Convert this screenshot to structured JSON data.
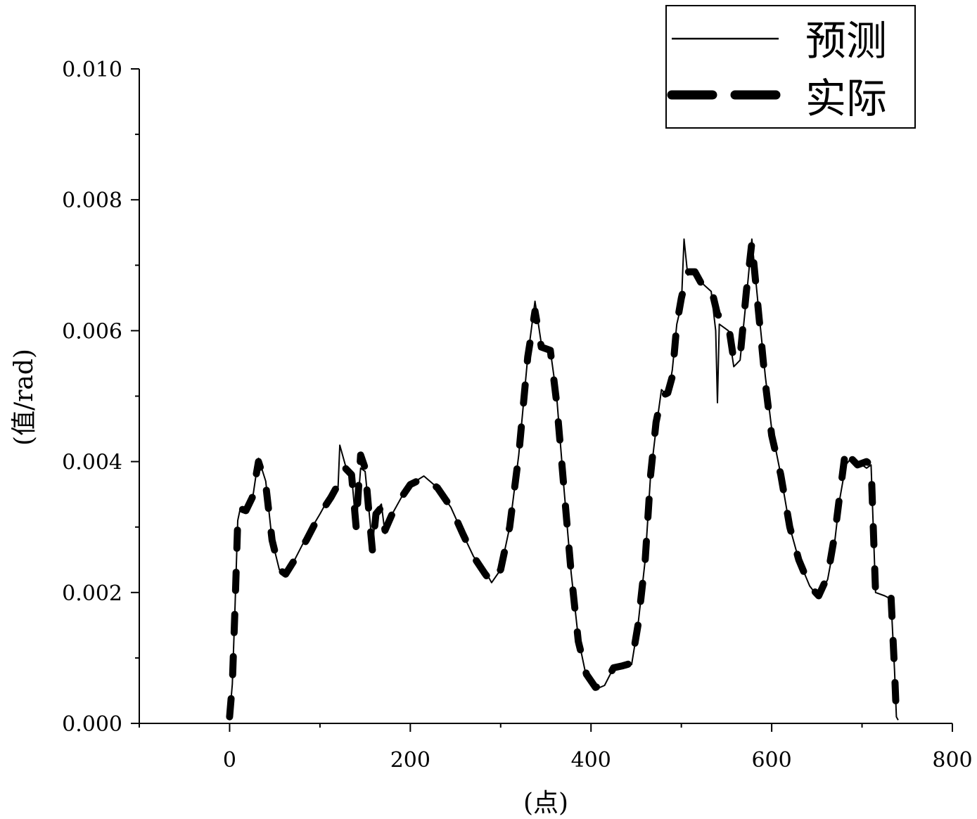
{
  "chart_data": {
    "type": "line",
    "title": "",
    "xlabel": "(点)",
    "ylabel": "(值/rad)",
    "xlim": [
      -100,
      800
    ],
    "ylim": [
      0,
      0.01
    ],
    "x_ticks": [
      0,
      200,
      400,
      600,
      800
    ],
    "x_tick_labels": [
      "0",
      "200",
      "400",
      "600",
      "800"
    ],
    "y_ticks": [
      0.0,
      0.002,
      0.004,
      0.006,
      0.008,
      0.01
    ],
    "y_tick_labels": [
      "0.000",
      "0.002",
      "0.004",
      "0.006",
      "0.008",
      "0.010"
    ],
    "grid": false,
    "legend": {
      "position": "top-right",
      "entries": [
        {
          "label": "预测",
          "style": "solid"
        },
        {
          "label": "实际",
          "style": "dashed"
        }
      ]
    },
    "series": [
      {
        "name": "预测",
        "style": "solid",
        "color": "#000000",
        "points": [
          [
            0,
            0.0001
          ],
          [
            3,
            0.0006
          ],
          [
            6,
            0.0018
          ],
          [
            9,
            0.0031
          ],
          [
            12,
            0.0033
          ],
          [
            18,
            0.00325
          ],
          [
            25,
            0.0034
          ],
          [
            32,
            0.00405
          ],
          [
            40,
            0.0037
          ],
          [
            47,
            0.0028
          ],
          [
            55,
            0.00235
          ],
          [
            62,
            0.00225
          ],
          [
            72,
            0.0025
          ],
          [
            85,
            0.00285
          ],
          [
            100,
            0.0032
          ],
          [
            112,
            0.0035
          ],
          [
            120,
            0.0036
          ],
          [
            122,
            0.00425
          ],
          [
            128,
            0.00395
          ],
          [
            135,
            0.0038
          ],
          [
            140,
            0.003
          ],
          [
            145,
            0.0039
          ],
          [
            150,
            0.00385
          ],
          [
            155,
            0.00315
          ],
          [
            158,
            0.0027
          ],
          [
            162,
            0.00325
          ],
          [
            168,
            0.00335
          ],
          [
            172,
            0.0029
          ],
          [
            180,
            0.0032
          ],
          [
            190,
            0.00345
          ],
          [
            200,
            0.00365
          ],
          [
            215,
            0.00378
          ],
          [
            230,
            0.0036
          ],
          [
            245,
            0.0033
          ],
          [
            258,
            0.0029
          ],
          [
            270,
            0.00255
          ],
          [
            282,
            0.00235
          ],
          [
            290,
            0.00215
          ],
          [
            300,
            0.00235
          ],
          [
            310,
            0.003
          ],
          [
            320,
            0.0041
          ],
          [
            330,
            0.0056
          ],
          [
            338,
            0.00645
          ],
          [
            345,
            0.0058
          ],
          [
            355,
            0.0057
          ],
          [
            362,
            0.005
          ],
          [
            370,
            0.0036
          ],
          [
            378,
            0.0023
          ],
          [
            386,
            0.0013
          ],
          [
            395,
            0.0007
          ],
          [
            405,
            0.00052
          ],
          [
            415,
            0.00058
          ],
          [
            425,
            0.00085
          ],
          [
            435,
            0.0009
          ],
          [
            445,
            0.0009
          ],
          [
            452,
            0.0015
          ],
          [
            460,
            0.0025
          ],
          [
            466,
            0.0038
          ],
          [
            472,
            0.0045
          ],
          [
            478,
            0.0051
          ],
          [
            485,
            0.005
          ],
          [
            490,
            0.0054
          ],
          [
            495,
            0.0061
          ],
          [
            500,
            0.0064
          ],
          [
            503,
            0.0074
          ],
          [
            507,
            0.00685
          ],
          [
            515,
            0.0069
          ],
          [
            525,
            0.0067
          ],
          [
            533,
            0.0066
          ],
          [
            538,
            0.006
          ],
          [
            540,
            0.0049
          ],
          [
            542,
            0.0061
          ],
          [
            552,
            0.006
          ],
          [
            558,
            0.00545
          ],
          [
            565,
            0.00555
          ],
          [
            572,
            0.0065
          ],
          [
            578,
            0.0074
          ],
          [
            585,
            0.0064
          ],
          [
            593,
            0.0053
          ],
          [
            600,
            0.0045
          ],
          [
            610,
            0.0038
          ],
          [
            620,
            0.003
          ],
          [
            630,
            0.0025
          ],
          [
            642,
            0.0021
          ],
          [
            652,
            0.00192
          ],
          [
            662,
            0.0022
          ],
          [
            670,
            0.0028
          ],
          [
            675,
            0.0034
          ],
          [
            682,
            0.00395
          ],
          [
            688,
            0.00405
          ],
          [
            695,
            0.004
          ],
          [
            705,
            0.0039
          ],
          [
            710,
            0.00395
          ],
          [
            715,
            0.002
          ],
          [
            725,
            0.00195
          ],
          [
            732,
            0.0019
          ],
          [
            736,
            0.0008
          ],
          [
            738,
            0.0001
          ],
          [
            740,
            5e-05
          ]
        ]
      },
      {
        "name": "实际",
        "style": "dashed",
        "color": "#000000",
        "points": [
          [
            0,
            0.0001
          ],
          [
            3,
            0.0006
          ],
          [
            6,
            0.0018
          ],
          [
            9,
            0.0031
          ],
          [
            12,
            0.00328
          ],
          [
            18,
            0.00325
          ],
          [
            25,
            0.00345
          ],
          [
            32,
            0.004
          ],
          [
            40,
            0.00365
          ],
          [
            47,
            0.0028
          ],
          [
            55,
            0.00235
          ],
          [
            62,
            0.00228
          ],
          [
            72,
            0.0025
          ],
          [
            85,
            0.0028
          ],
          [
            100,
            0.0032
          ],
          [
            112,
            0.00345
          ],
          [
            120,
            0.00365
          ],
          [
            128,
            0.0039
          ],
          [
            135,
            0.0038
          ],
          [
            140,
            0.003
          ],
          [
            145,
            0.0041
          ],
          [
            150,
            0.0039
          ],
          [
            155,
            0.0031
          ],
          [
            158,
            0.00265
          ],
          [
            162,
            0.0032
          ],
          [
            168,
            0.0033
          ],
          [
            172,
            0.00295
          ],
          [
            180,
            0.0032
          ],
          [
            190,
            0.00345
          ],
          [
            200,
            0.00365
          ],
          [
            215,
            0.00375
          ],
          [
            230,
            0.0036
          ],
          [
            245,
            0.0033
          ],
          [
            258,
            0.0029
          ],
          [
            270,
            0.00255
          ],
          [
            282,
            0.0023
          ],
          [
            290,
            0.00215
          ],
          [
            300,
            0.00235
          ],
          [
            310,
            0.003
          ],
          [
            320,
            0.0041
          ],
          [
            330,
            0.0056
          ],
          [
            338,
            0.0063
          ],
          [
            345,
            0.00575
          ],
          [
            355,
            0.0057
          ],
          [
            362,
            0.0049
          ],
          [
            370,
            0.0036
          ],
          [
            378,
            0.0023
          ],
          [
            386,
            0.00125
          ],
          [
            395,
            0.00075
          ],
          [
            405,
            0.00055
          ],
          [
            415,
            0.0006
          ],
          [
            425,
            0.00085
          ],
          [
            435,
            0.00088
          ],
          [
            445,
            0.00092
          ],
          [
            452,
            0.0015
          ],
          [
            460,
            0.0025
          ],
          [
            466,
            0.0038
          ],
          [
            472,
            0.0046
          ],
          [
            478,
            0.005
          ],
          [
            485,
            0.00505
          ],
          [
            490,
            0.0053
          ],
          [
            495,
            0.0061
          ],
          [
            500,
            0.0065
          ],
          [
            507,
            0.0069
          ],
          [
            515,
            0.0069
          ],
          [
            525,
            0.00665
          ],
          [
            533,
            0.00665
          ],
          [
            540,
            0.00625
          ],
          [
            552,
            0.0061
          ],
          [
            558,
            0.00555
          ],
          [
            565,
            0.0056
          ],
          [
            572,
            0.0066
          ],
          [
            578,
            0.00735
          ],
          [
            585,
            0.00635
          ],
          [
            593,
            0.0052
          ],
          [
            600,
            0.0044
          ],
          [
            610,
            0.0038
          ],
          [
            620,
            0.003
          ],
          [
            630,
            0.0025
          ],
          [
            642,
            0.0021
          ],
          [
            652,
            0.00195
          ],
          [
            662,
            0.00225
          ],
          [
            670,
            0.0029
          ],
          [
            675,
            0.00345
          ],
          [
            682,
            0.0042
          ],
          [
            688,
            0.00405
          ],
          [
            695,
            0.00395
          ],
          [
            705,
            0.004
          ],
          [
            710,
            0.00395
          ],
          [
            715,
            0.002
          ],
          [
            725,
            0.00195
          ],
          [
            732,
            0.00195
          ],
          [
            736,
            0.0008
          ],
          [
            738,
            0.0001
          ]
        ]
      }
    ]
  }
}
